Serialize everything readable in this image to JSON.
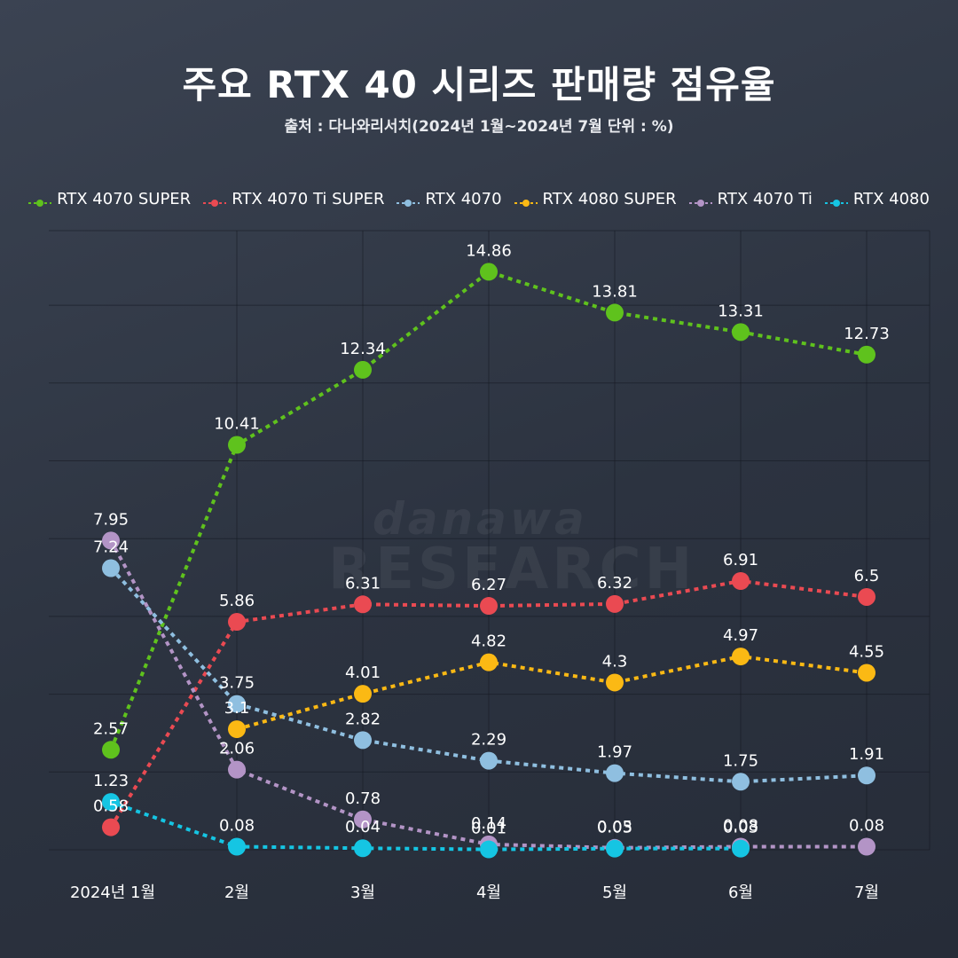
{
  "title": "주요 RTX 40 시리즈 판매량 점유율",
  "subtitle": "출처 : 다나와리서치(2024년 1월~2024년 7월 단위 : %)",
  "watermark": {
    "top": "danawa",
    "bottom": "RESEARCH"
  },
  "chart_data": {
    "type": "line",
    "title": "주요 RTX 40 시리즈 판매량 점유율",
    "subtitle": "출처 : 다나와리서치(2024년 1월~2024년 7월 단위 : %)",
    "categories": [
      "2024년 1월",
      "2월",
      "3월",
      "4월",
      "5월",
      "6월",
      "7월"
    ],
    "xlabel": "",
    "ylabel": "",
    "ylim": [
      0,
      16
    ],
    "grid": true,
    "legend_position": "top",
    "series": [
      {
        "name": "RTX 4070 SUPER",
        "color": "#5fc21d",
        "values": [
          2.57,
          10.41,
          12.34,
          14.86,
          13.81,
          13.31,
          12.73
        ]
      },
      {
        "name": "RTX 4070 Ti SUPER",
        "color": "#ea4a52",
        "values": [
          0.58,
          5.86,
          6.31,
          6.27,
          6.32,
          6.91,
          6.5
        ]
      },
      {
        "name": "RTX 4070",
        "color": "#8fbfe0",
        "values": [
          7.24,
          3.75,
          2.82,
          2.29,
          1.97,
          1.75,
          1.91
        ]
      },
      {
        "name": "RTX 4080 SUPER",
        "color": "#fbb914",
        "values": [
          null,
          3.1,
          4.01,
          4.82,
          4.3,
          4.97,
          4.55
        ]
      },
      {
        "name": "RTX 4070 Ti",
        "color": "#b394c6",
        "values": [
          7.95,
          2.06,
          0.78,
          0.14,
          0.05,
          0.08,
          0.08
        ]
      },
      {
        "name": "RTX 4080",
        "color": "#15c5e3",
        "values": [
          1.23,
          0.08,
          0.04,
          0.01,
          0.03,
          0.03,
          null
        ]
      }
    ]
  }
}
